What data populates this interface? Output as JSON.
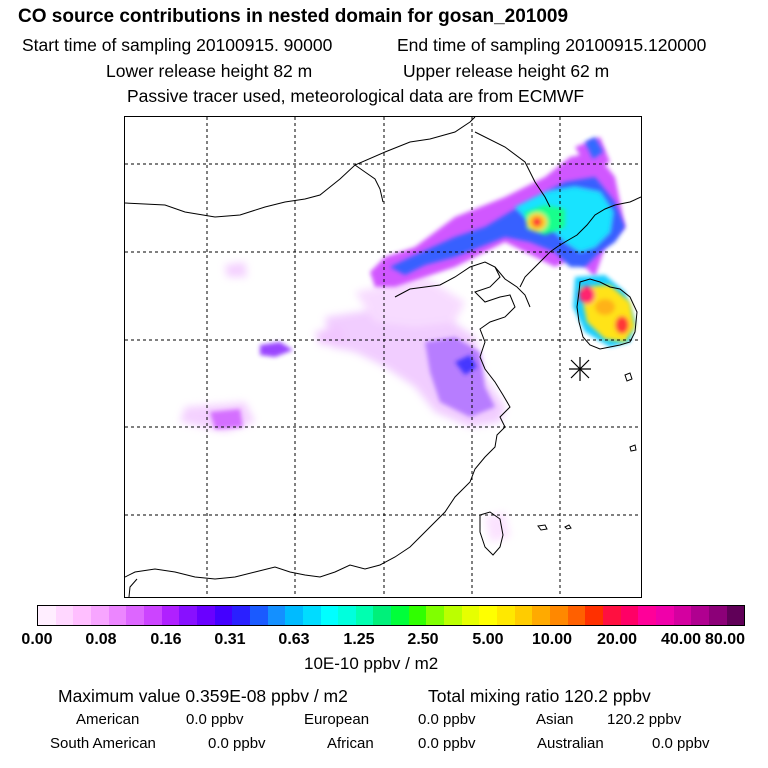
{
  "header": {
    "title": "CO  source contributions in nested domain for gosan_201009",
    "start_time": "Start time of sampling 20100915. 90000",
    "end_time": "End time of sampling 20100915.120000",
    "lower_release": "Lower release height   82 m",
    "upper_release": "Upper release height   62 m",
    "tracer_note": "Passive tracer used, meteorological data are from ECMWF"
  },
  "colorbar": {
    "ticks": [
      "0.00",
      "0.08",
      "0.16",
      "0.31",
      "0.63",
      "1.25",
      "2.50",
      "5.00",
      "10.00",
      "20.00",
      "40.00",
      "80.00"
    ],
    "unit": "10E-10 ppbv / m2",
    "colors": [
      "#ffeeff",
      "#ffd7ff",
      "#ffbfff",
      "#f7a5ff",
      "#ec86ff",
      "#dd66ff",
      "#cc44ff",
      "#b020ff",
      "#8810ff",
      "#6a00ff",
      "#4400ff",
      "#2a20ff",
      "#1a5aff",
      "#1490ff",
      "#00bbff",
      "#00dcff",
      "#00ffff",
      "#00ffdd",
      "#00ffb0",
      "#00f07a",
      "#00ff3a",
      "#30ff00",
      "#80ff00",
      "#bbff00",
      "#e6ff00",
      "#ffff00",
      "#ffe800",
      "#ffcc00",
      "#ffaa00",
      "#ff8800",
      "#ff6000",
      "#ff3000",
      "#ff1040",
      "#ff0066",
      "#ff0099",
      "#f000aa",
      "#d400a0",
      "#b00090",
      "#8c0078",
      "#600058"
    ]
  },
  "summary": {
    "maximum_value": "Maximum value  0.359E-08 ppbv / m2",
    "total_mixing_ratio": "Total mixing ratio      120.2 ppbv",
    "american_label": "American",
    "american_value": "0.0 ppbv",
    "european_label": "European",
    "european_value": "0.0 ppbv",
    "asian_label": "Asian",
    "asian_value": "120.2 ppbv",
    "south_american_label": "South American",
    "south_american_value": "0.0 ppbv",
    "african_label": "African",
    "african_value": "0.0 ppbv",
    "australian_label": "Australian",
    "australian_value": "0.0 ppbv"
  }
}
